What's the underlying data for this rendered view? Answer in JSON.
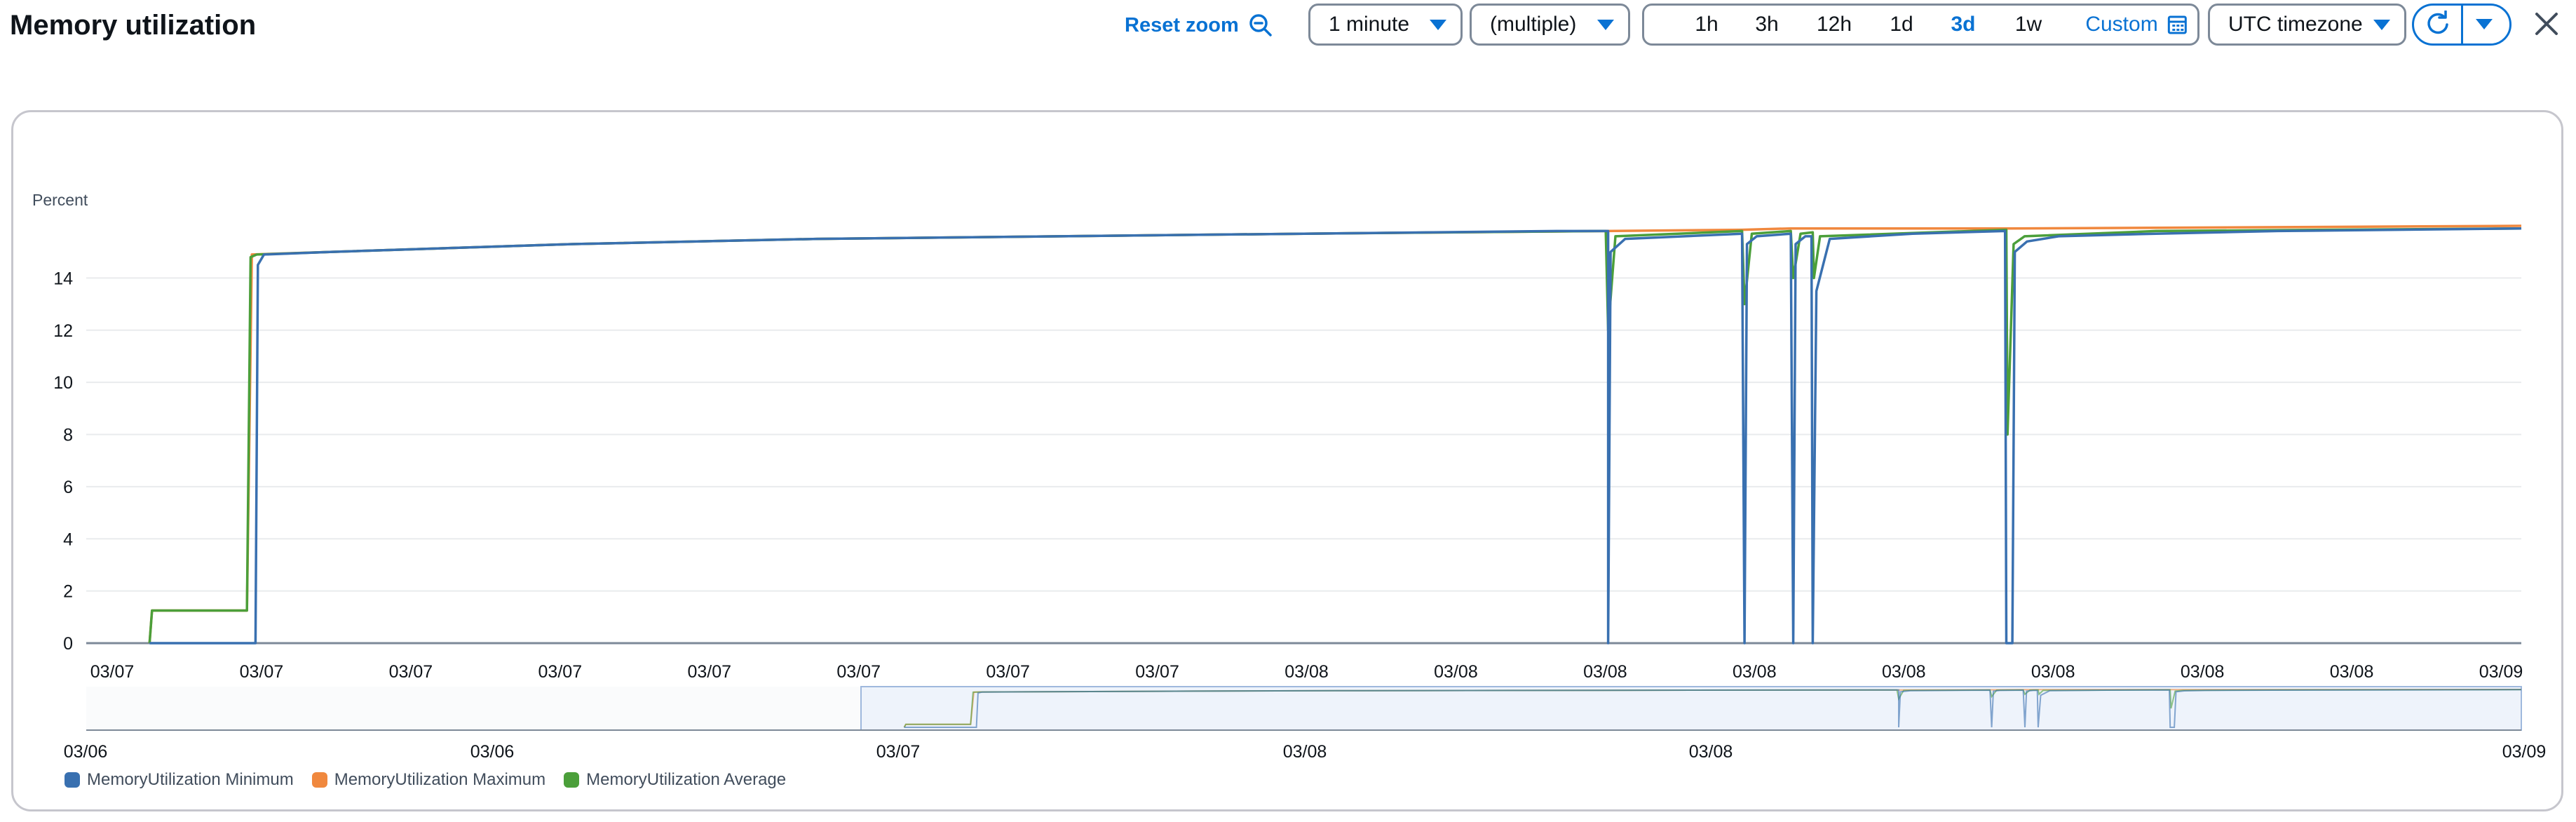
{
  "header": {
    "title": "Memory utilization",
    "reset_zoom_label": "Reset zoom",
    "period_label": "1 minute",
    "stat_label": "(multiple)",
    "time_ranges": [
      {
        "label": "1h",
        "active": false
      },
      {
        "label": "3h",
        "active": false
      },
      {
        "label": "12h",
        "active": false
      },
      {
        "label": "1d",
        "active": false
      },
      {
        "label": "3d",
        "active": true
      },
      {
        "label": "1w",
        "active": false
      }
    ],
    "custom_label": "Custom",
    "timezone_label": "UTC timezone"
  },
  "icons": {
    "reset_zoom": "zoom-out-icon",
    "custom": "calendar-icon",
    "refresh": "refresh-icon",
    "refresh_menu": "caret-down-icon",
    "close": "close-icon"
  },
  "colors": {
    "accent": "#0972d3",
    "minimum": "#3970b0",
    "maximum": "#f0883e",
    "average": "#4b9f3a",
    "grid": "#e9ebed",
    "axis": "#7d8998"
  },
  "chart_data": {
    "type": "line",
    "ylabel": "Percent",
    "ylim": [
      0,
      16
    ],
    "yticks": [
      0,
      2,
      4,
      6,
      8,
      10,
      12,
      14
    ],
    "grid": true,
    "xlim": [
      0,
      100
    ],
    "xtick_labels": [
      "03/07",
      "03/07",
      "03/07",
      "03/07",
      "03/07",
      "03/07",
      "03/07",
      "03/07",
      "03/08",
      "03/08",
      "03/08",
      "03/08",
      "03/08",
      "03/08",
      "03/08",
      "03/08",
      "03/09"
    ],
    "series": [
      {
        "name": "MemoryUtilization Minimum",
        "color": "#3970b0",
        "points": [
          [
            2.6,
            0
          ],
          [
            6.9,
            0
          ],
          [
            6.95,
            0
          ],
          [
            7.05,
            14.5
          ],
          [
            7.3,
            14.9
          ],
          [
            10,
            15.0
          ],
          [
            20,
            15.3
          ],
          [
            30,
            15.5
          ],
          [
            40,
            15.6
          ],
          [
            50,
            15.7
          ],
          [
            60.4,
            15.8
          ],
          [
            62.5,
            15.8
          ],
          [
            62.5,
            0
          ],
          [
            62.6,
            15.0
          ],
          [
            63.2,
            15.5
          ],
          [
            68.0,
            15.7
          ],
          [
            68.1,
            0
          ],
          [
            68.2,
            15.3
          ],
          [
            68.6,
            15.6
          ],
          [
            70.0,
            15.7
          ],
          [
            70.1,
            0
          ],
          [
            70.2,
            15.3
          ],
          [
            70.6,
            15.6
          ],
          [
            70.85,
            15.6
          ],
          [
            70.9,
            0
          ],
          [
            71.05,
            13.5
          ],
          [
            71.6,
            15.5
          ],
          [
            75,
            15.7
          ],
          [
            78.8,
            15.8
          ],
          [
            78.85,
            0
          ],
          [
            79.1,
            0
          ],
          [
            79.2,
            15.0
          ],
          [
            79.7,
            15.4
          ],
          [
            81,
            15.6
          ],
          [
            85,
            15.7
          ],
          [
            90,
            15.8
          ],
          [
            100,
            15.9
          ]
        ]
      },
      {
        "name": "MemoryUtilization Maximum",
        "color": "#f0883e",
        "points": [
          [
            2.6,
            0
          ],
          [
            2.7,
            1.25
          ],
          [
            6.6,
            1.25
          ],
          [
            6.8,
            14.9
          ],
          [
            10,
            15.0
          ],
          [
            20,
            15.3
          ],
          [
            30,
            15.5
          ],
          [
            40,
            15.6
          ],
          [
            50,
            15.7
          ],
          [
            62.4,
            15.8
          ],
          [
            68,
            15.85
          ],
          [
            70,
            15.9
          ],
          [
            79,
            15.9
          ],
          [
            90,
            15.95
          ],
          [
            100,
            16.0
          ]
        ]
      },
      {
        "name": "MemoryUtilization Average",
        "color": "#4b9f3a",
        "points": [
          [
            2.6,
            0
          ],
          [
            2.7,
            1.25
          ],
          [
            6.6,
            1.25
          ],
          [
            6.75,
            14.8
          ],
          [
            7.0,
            14.9
          ],
          [
            10,
            15.0
          ],
          [
            20,
            15.3
          ],
          [
            30,
            15.5
          ],
          [
            40,
            15.6
          ],
          [
            50,
            15.7
          ],
          [
            62.4,
            15.8
          ],
          [
            62.5,
            12.0
          ],
          [
            62.8,
            15.6
          ],
          [
            68.0,
            15.8
          ],
          [
            68.1,
            13.0
          ],
          [
            68.4,
            15.7
          ],
          [
            70.0,
            15.8
          ],
          [
            70.1,
            14.0
          ],
          [
            70.4,
            15.7
          ],
          [
            70.9,
            15.75
          ],
          [
            70.95,
            14.0
          ],
          [
            71.2,
            15.6
          ],
          [
            78.85,
            15.85
          ],
          [
            78.9,
            8.0
          ],
          [
            79.15,
            15.3
          ],
          [
            79.6,
            15.6
          ],
          [
            85,
            15.8
          ],
          [
            100,
            15.9
          ]
        ]
      }
    ],
    "navigator": {
      "xtick_labels": [
        "03/06",
        "03/06",
        "03/07",
        "03/08",
        "03/08",
        "03/09"
      ]
    }
  }
}
